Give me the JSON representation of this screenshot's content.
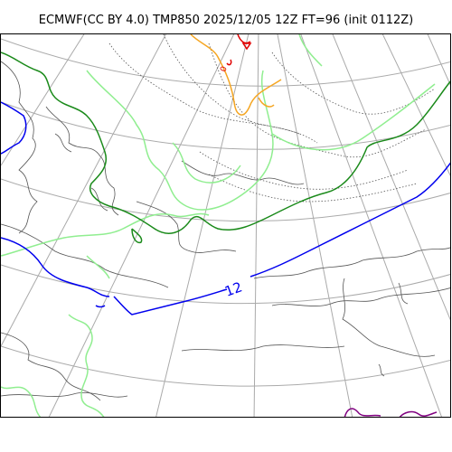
{
  "title": "ECMWF(CC BY 4.0) TMP850 2025/12/05 12Z FT=96 (init 0112Z)",
  "labels": {
    "isotherm_12": "12",
    "isotherm_0": "0"
  },
  "colors": {
    "graticule": "#aaaaaa",
    "coastline": "#555555",
    "contour_dotted": "#555555",
    "isotherm_12": "#0000ee",
    "isotherm_6": "#1a8a1a",
    "isotherm_light": "#90ee90",
    "isotherm_orange": "#f5a623",
    "isotherm_red": "#e00000",
    "isotherm_purple": "#800080"
  }
}
